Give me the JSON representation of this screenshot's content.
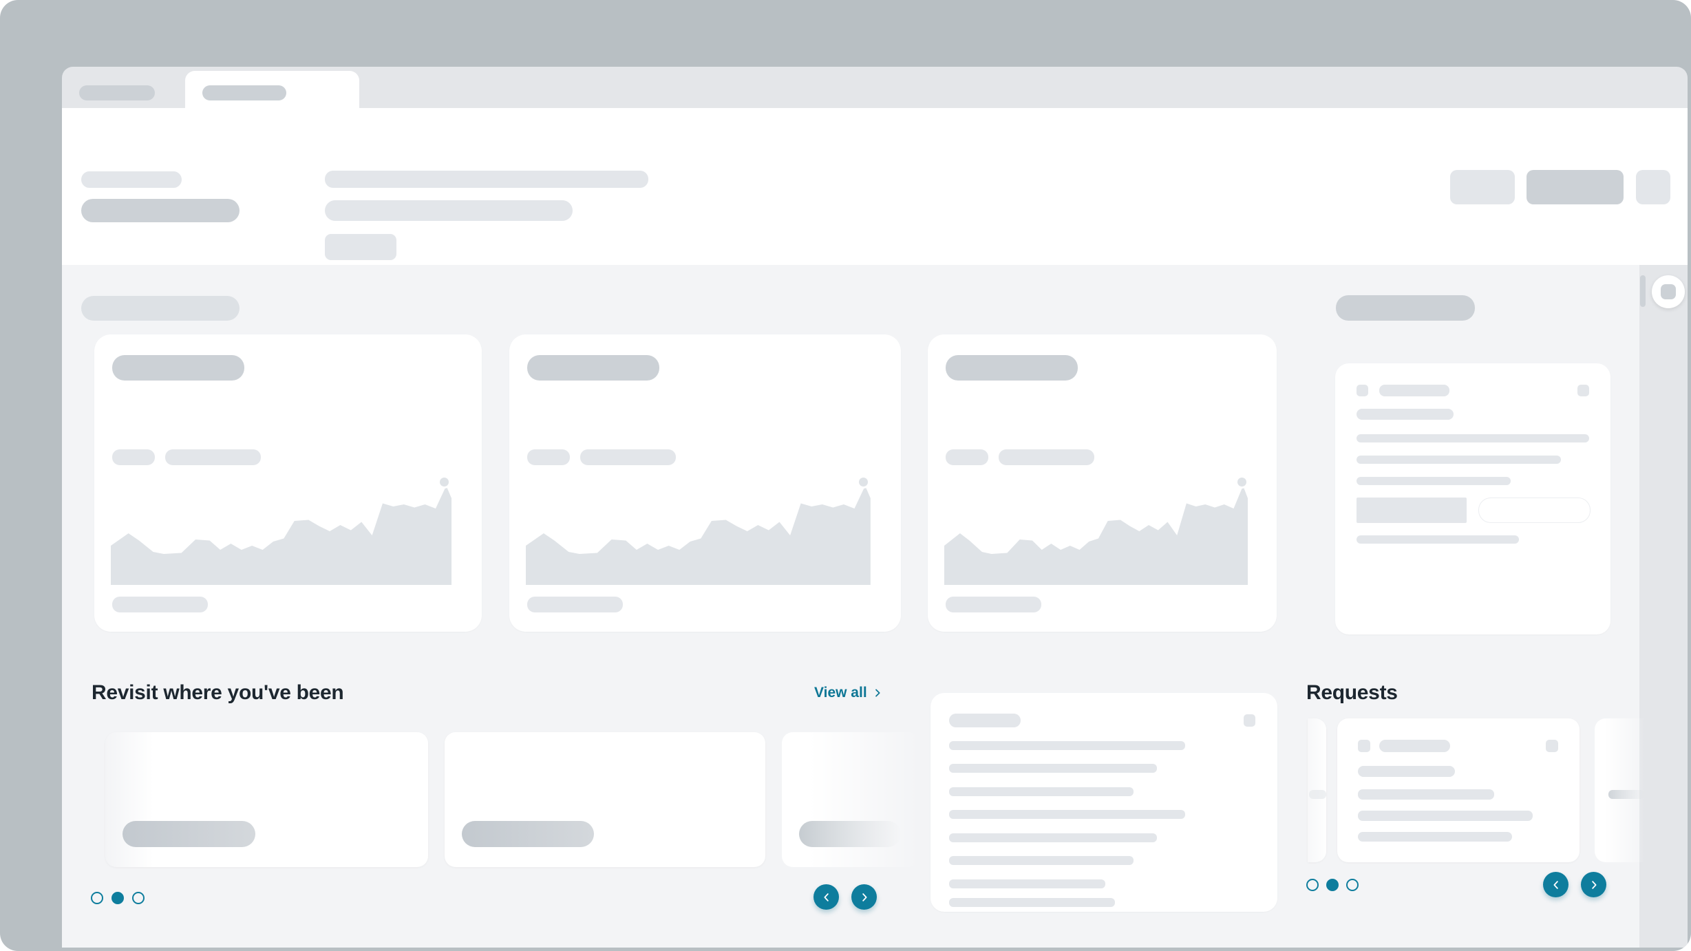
{
  "colors": {
    "backdrop": "#b8bfc3",
    "tab_strip": "#e4e6e9",
    "surface": "#ffffff",
    "content_bg": "#f3f4f6",
    "skeleton_light": "#e3e6ea",
    "skeleton_mid": "#dde1e5",
    "skeleton_dark": "#ccd1d6",
    "chart_fill": "#dfe3e7",
    "teal": "#0e7d9d",
    "link": "#0d7695",
    "heading": "#1d2730"
  },
  "sections": {
    "revisit": {
      "title": "Revisit where you've been",
      "view_all_label": "View all",
      "carousel": {
        "dot_count": 3,
        "active_dot": 1
      },
      "nav": {
        "prev_icon": "chevron-left-icon",
        "next_icon": "chevron-right-icon"
      }
    },
    "requests": {
      "title": "Requests",
      "carousel": {
        "dot_count": 3,
        "active_dot": 1
      },
      "nav": {
        "prev_icon": "chevron-left-icon",
        "next_icon": "chevron-right-icon"
      }
    }
  },
  "rail": {
    "widget_button_icon": "rounded-square-icon"
  }
}
